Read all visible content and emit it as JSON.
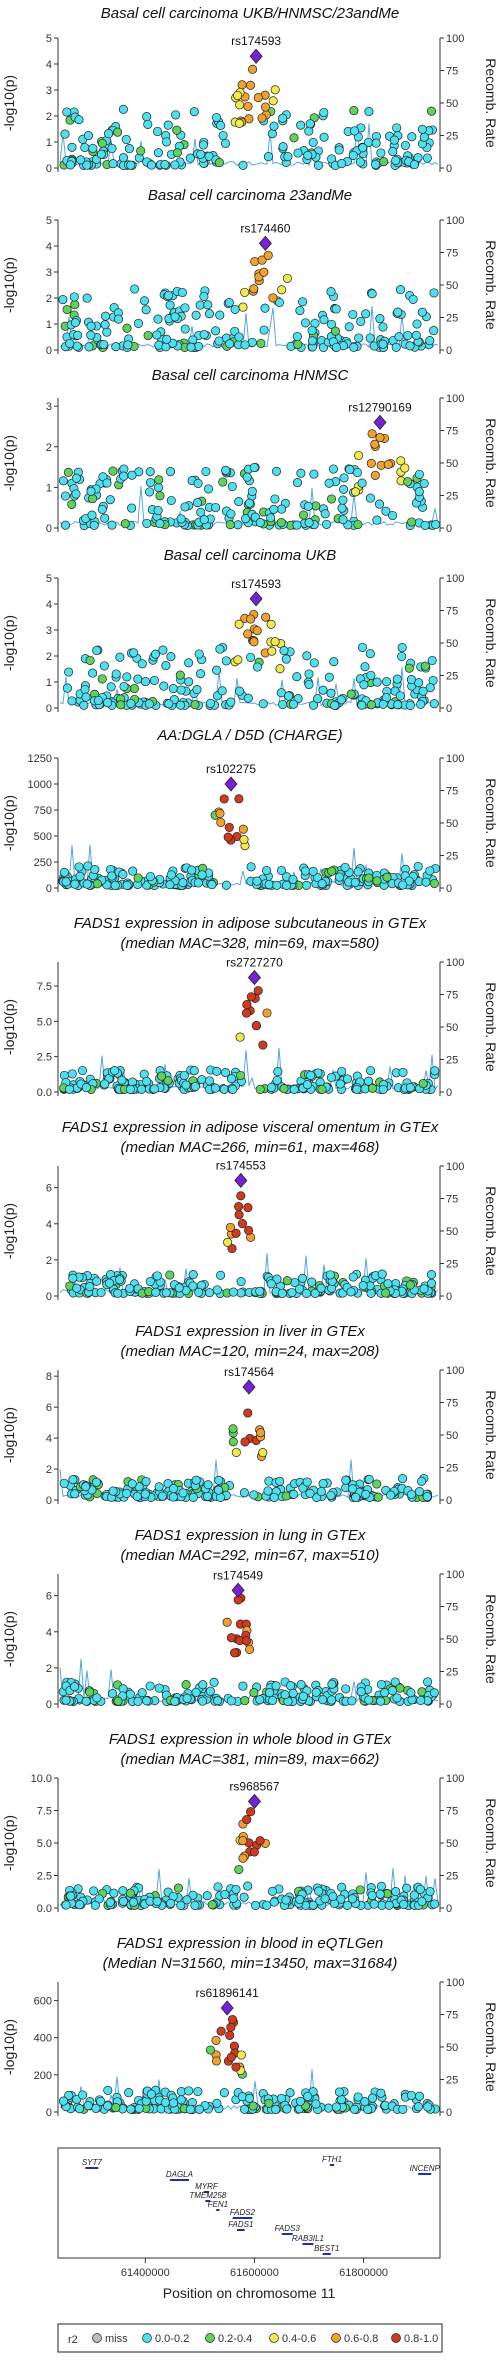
{
  "figure": {
    "x_axis_label": "Position on chromosome 11",
    "x_ticks": [
      "61400000",
      "61600000",
      "61800000"
    ],
    "y_axis_label": "-log10(p)",
    "y2_axis_label": "Recomb. Rate"
  },
  "legend": {
    "title": "r2",
    "items": [
      {
        "label": "miss",
        "color": "#bdbdbd"
      },
      {
        "label": "0.0-0.2",
        "color": "#4de0f0"
      },
      {
        "label": "0.2-0.4",
        "color": "#5ed35a"
      },
      {
        "label": "0.4-0.6",
        "color": "#f2e94a"
      },
      {
        "label": "0.6-0.8",
        "color": "#f2a12c"
      },
      {
        "label": "0.8-1.0",
        "color": "#d23a1d"
      }
    ],
    "lead_color": "#7a1fd8"
  },
  "genes": [
    {
      "name": "SYT7"
    },
    {
      "name": "DAGLA"
    },
    {
      "name": "MYRF"
    },
    {
      "name": "TMEM258"
    },
    {
      "name": "FEN1"
    },
    {
      "name": "FADS2"
    },
    {
      "name": "FADS1"
    },
    {
      "name": "FADS3"
    },
    {
      "name": "RAB3IL1"
    },
    {
      "name": "BEST1"
    },
    {
      "name": "FTH1"
    },
    {
      "name": "INCENP"
    }
  ],
  "chart_data": [
    {
      "type": "scatter",
      "title": "Basal cell carcinoma UKB/HNMSC/23andMe",
      "subtitle": "",
      "lead_snp": "rs174593",
      "ylim": [
        0,
        5
      ],
      "y_ticks": [
        "0",
        "1",
        "2",
        "3",
        "4",
        "5"
      ],
      "y2_ticks": [
        "0",
        "25",
        "50",
        "75",
        "100"
      ],
      "lead": {
        "x": 61603000,
        "y": 4.3
      }
    },
    {
      "type": "scatter",
      "title": "Basal cell carcinoma 23andMe",
      "subtitle": "",
      "lead_snp": "rs174460",
      "ylim": [
        0,
        5
      ],
      "y_ticks": [
        "0",
        "1",
        "2",
        "3",
        "4",
        "5"
      ],
      "y2_ticks": [
        "0",
        "25",
        "50",
        "75",
        "100"
      ],
      "lead": {
        "x": 61620000,
        "y": 4.1
      }
    },
    {
      "type": "scatter",
      "title": "Basal cell carcinoma HNMSC",
      "subtitle": "",
      "lead_snp": "rs12790169",
      "ylim": [
        0,
        3.2
      ],
      "y_ticks": [
        "0",
        "1",
        "2",
        "3"
      ],
      "y2_ticks": [
        "0",
        "25",
        "50",
        "75",
        "100"
      ],
      "lead": {
        "x": 61830000,
        "y": 2.6
      }
    },
    {
      "type": "scatter",
      "title": "Basal cell carcinoma UKB",
      "subtitle": "",
      "lead_snp": "rs174593",
      "ylim": [
        0,
        5
      ],
      "y_ticks": [
        "0",
        "1",
        "2",
        "3",
        "4",
        "5"
      ],
      "y2_ticks": [
        "0",
        "25",
        "50",
        "75",
        "100"
      ],
      "lead": {
        "x": 61603000,
        "y": 4.2
      }
    },
    {
      "type": "scatter",
      "title": "AA:DGLA / D5D (CHARGE)",
      "subtitle": "",
      "lead_snp": "rs102275",
      "ylim": [
        0,
        1250
      ],
      "y_ticks": [
        "0",
        "250",
        "500",
        "750",
        "1000",
        "1250"
      ],
      "y2_ticks": [
        "0",
        "25",
        "50",
        "75",
        "100"
      ],
      "lead": {
        "x": 61557000,
        "y": 1000
      }
    },
    {
      "type": "scatter",
      "title": "FADS1 expression in adipose subcutaneous in GTEx",
      "subtitle": "(median MAC=328, min=69, max=580)",
      "lead_snp": "rs2727270",
      "ylim": [
        0,
        9.2
      ],
      "y_ticks": [
        "0.0",
        "2.5",
        "5.0",
        "7.5"
      ],
      "y2_ticks": [
        "0",
        "25",
        "50",
        "75",
        "100"
      ],
      "lead": {
        "x": 61600000,
        "y": 8.1
      }
    },
    {
      "type": "scatter",
      "title": "FADS1 expression in adipose visceral omentum in GTEx",
      "subtitle": "(median MAC=266, min=61, max=468)",
      "lead_snp": "rs174553",
      "ylim": [
        0,
        7.2
      ],
      "y_ticks": [
        "0",
        "2",
        "4",
        "6"
      ],
      "y2_ticks": [
        "0",
        "25",
        "50",
        "75",
        "100"
      ],
      "lead": {
        "x": 61575000,
        "y": 6.4
      }
    },
    {
      "type": "scatter",
      "title": "FADS1 expression in liver in GTEx",
      "subtitle": "(median MAC=120, min=24, max=208)",
      "lead_snp": "rs174564",
      "ylim": [
        0,
        8.4
      ],
      "y_ticks": [
        "0",
        "2",
        "4",
        "6",
        "8"
      ],
      "y2_ticks": [
        "0",
        "25",
        "50",
        "75",
        "100"
      ],
      "lead": {
        "x": 61590000,
        "y": 7.3
      }
    },
    {
      "type": "scatter",
      "title": "FADS1 expression in lung in GTEx",
      "subtitle": "(median MAC=292, min=67, max=510)",
      "lead_snp": "rs174549",
      "ylim": [
        0,
        7.2
      ],
      "y_ticks": [
        "0",
        "2",
        "4",
        "6"
      ],
      "y2_ticks": [
        "0",
        "25",
        "50",
        "75",
        "100"
      ],
      "lead": {
        "x": 61570000,
        "y": 6.3
      }
    },
    {
      "type": "scatter",
      "title": "FADS1 expression in whole blood in GTEx",
      "subtitle": "(median MAC=381, min=89, max=662)",
      "lead_snp": "rs968567",
      "ylim": [
        0,
        10
      ],
      "y_ticks": [
        "0.0",
        "2.5",
        "5.0",
        "7.5",
        "10.0"
      ],
      "y2_ticks": [
        "0",
        "25",
        "50",
        "75",
        "100"
      ],
      "lead": {
        "x": 61600000,
        "y": 8.2
      }
    },
    {
      "type": "scatter",
      "title": "FADS1 expression in blood in eQTLGen",
      "subtitle": "(Median N=31560, min=13450, max=31684)",
      "lead_snp": "rs61896141",
      "ylim": [
        0,
        700
      ],
      "y_ticks": [
        "0",
        "200",
        "400",
        "600"
      ],
      "y2_ticks": [
        "0",
        "25",
        "50",
        "75",
        "100"
      ],
      "lead": {
        "x": 61550000,
        "y": 560
      }
    }
  ]
}
